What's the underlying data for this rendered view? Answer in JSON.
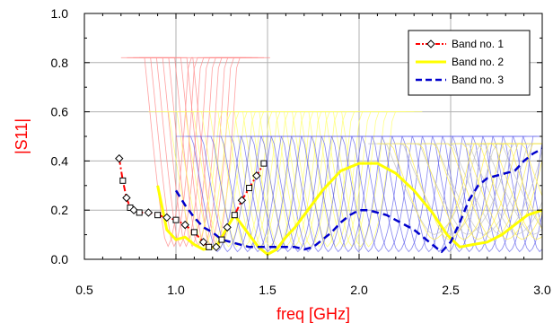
{
  "chart_data": {
    "type": "line",
    "xlabel": "freq [GHz]",
    "ylabel": "|S11|",
    "xlim": [
      0.5,
      3.0
    ],
    "ylim": [
      0.0,
      1.0
    ],
    "x_ticks": [
      0.5,
      1.0,
      1.5,
      2.0,
      2.5,
      3.0
    ],
    "y_ticks": [
      0.0,
      0.2,
      0.4,
      0.6,
      0.8,
      1.0
    ],
    "x_tick_labels": [
      "0.5",
      "1.0",
      "1.5",
      "2.0",
      "2.5",
      "3.0"
    ],
    "y_tick_labels": [
      "0.0",
      "0.2",
      "0.4",
      "0.6",
      "0.8",
      "1.0"
    ],
    "grid": true,
    "legend_position": "top-right",
    "axis_title_color": "#ff0000",
    "series": [
      {
        "name": "Band no. 1",
        "color": "#ff0000",
        "style": "dash-dot with diamond/square markers",
        "points": [
          [
            0.69,
            0.41
          ],
          [
            0.71,
            0.32
          ],
          [
            0.73,
            0.25
          ],
          [
            0.75,
            0.21
          ],
          [
            0.77,
            0.2
          ],
          [
            0.8,
            0.19
          ],
          [
            0.85,
            0.19
          ],
          [
            0.9,
            0.18
          ],
          [
            0.95,
            0.17
          ],
          [
            1.0,
            0.16
          ],
          [
            1.05,
            0.14
          ],
          [
            1.1,
            0.11
          ],
          [
            1.15,
            0.07
          ],
          [
            1.18,
            0.05
          ],
          [
            1.22,
            0.05
          ],
          [
            1.25,
            0.08
          ],
          [
            1.28,
            0.13
          ],
          [
            1.32,
            0.18
          ],
          [
            1.36,
            0.24
          ],
          [
            1.4,
            0.29
          ],
          [
            1.44,
            0.34
          ],
          [
            1.48,
            0.39
          ]
        ]
      },
      {
        "name": "Band no. 2",
        "color": "#ffff00",
        "style": "solid thick",
        "points": [
          [
            0.9,
            0.3
          ],
          [
            0.95,
            0.12
          ],
          [
            1.0,
            0.08
          ],
          [
            1.05,
            0.09
          ],
          [
            1.1,
            0.06
          ],
          [
            1.15,
            0.04
          ],
          [
            1.22,
            0.05
          ],
          [
            1.28,
            0.13
          ],
          [
            1.32,
            0.18
          ],
          [
            1.38,
            0.12
          ],
          [
            1.45,
            0.05
          ],
          [
            1.5,
            0.02
          ],
          [
            1.55,
            0.04
          ],
          [
            1.6,
            0.09
          ],
          [
            1.65,
            0.13
          ],
          [
            1.7,
            0.18
          ],
          [
            1.8,
            0.28
          ],
          [
            1.9,
            0.36
          ],
          [
            2.0,
            0.39
          ],
          [
            2.1,
            0.39
          ],
          [
            2.2,
            0.35
          ],
          [
            2.3,
            0.28
          ],
          [
            2.4,
            0.19
          ],
          [
            2.48,
            0.1
          ],
          [
            2.55,
            0.05
          ],
          [
            2.62,
            0.06
          ],
          [
            2.7,
            0.07
          ],
          [
            2.78,
            0.1
          ],
          [
            2.85,
            0.14
          ],
          [
            2.92,
            0.18
          ],
          [
            3.0,
            0.2
          ]
        ]
      },
      {
        "name": "Band no. 3",
        "color": "#0000cc",
        "style": "dashed",
        "points": [
          [
            1.0,
            0.28
          ],
          [
            1.05,
            0.22
          ],
          [
            1.1,
            0.17
          ],
          [
            1.15,
            0.13
          ],
          [
            1.2,
            0.11
          ],
          [
            1.25,
            0.08
          ],
          [
            1.3,
            0.07
          ],
          [
            1.35,
            0.06
          ],
          [
            1.4,
            0.05
          ],
          [
            1.45,
            0.05
          ],
          [
            1.5,
            0.05
          ],
          [
            1.55,
            0.05
          ],
          [
            1.6,
            0.05
          ],
          [
            1.65,
            0.05
          ],
          [
            1.7,
            0.04
          ],
          [
            1.75,
            0.05
          ],
          [
            1.8,
            0.08
          ],
          [
            1.85,
            0.11
          ],
          [
            1.9,
            0.15
          ],
          [
            1.95,
            0.18
          ],
          [
            2.0,
            0.2
          ],
          [
            2.05,
            0.2
          ],
          [
            2.1,
            0.19
          ],
          [
            2.15,
            0.18
          ],
          [
            2.2,
            0.16
          ],
          [
            2.25,
            0.14
          ],
          [
            2.3,
            0.12
          ],
          [
            2.35,
            0.09
          ],
          [
            2.4,
            0.06
          ],
          [
            2.45,
            0.03
          ],
          [
            2.5,
            0.07
          ],
          [
            2.55,
            0.15
          ],
          [
            2.6,
            0.24
          ],
          [
            2.65,
            0.3
          ],
          [
            2.7,
            0.33
          ],
          [
            2.75,
            0.34
          ],
          [
            2.8,
            0.35
          ],
          [
            2.85,
            0.36
          ],
          [
            2.9,
            0.4
          ],
          [
            2.95,
            0.43
          ],
          [
            3.0,
            0.45
          ]
        ]
      }
    ],
    "background_sweeps": [
      {
        "color": "#ff8888",
        "count": 9,
        "x_start": 0.7,
        "x_step": 0.033,
        "dip_offset": 0.25,
        "dip_width": 0.12,
        "peak": 0.82,
        "floor": 0.05
      },
      {
        "color": "#ffff66",
        "count": 22,
        "x_start": 0.85,
        "x_step": 0.045,
        "dip_offset": 0.25,
        "dip_width": 0.14,
        "peak": 0.6,
        "floor": 0.05
      },
      {
        "color": "#6666ee",
        "count": 34,
        "x_start": 1.0,
        "x_step": 0.055,
        "dip_offset": 0.22,
        "dip_width": 0.13,
        "peak": 0.5,
        "floor": 0.03
      },
      {
        "color": "#c0c0c0",
        "count": 8,
        "x_start": 2.05,
        "x_step": 0.09,
        "dip_offset": 0.35,
        "dip_width": 0.25,
        "peak": 0.47,
        "floor": 0.1
      },
      {
        "color": "#ffee44",
        "count": 10,
        "x_start": 2.1,
        "x_step": 0.08,
        "dip_offset": 0.3,
        "dip_width": 0.22,
        "peak": 0.47,
        "floor": 0.08
      }
    ]
  }
}
